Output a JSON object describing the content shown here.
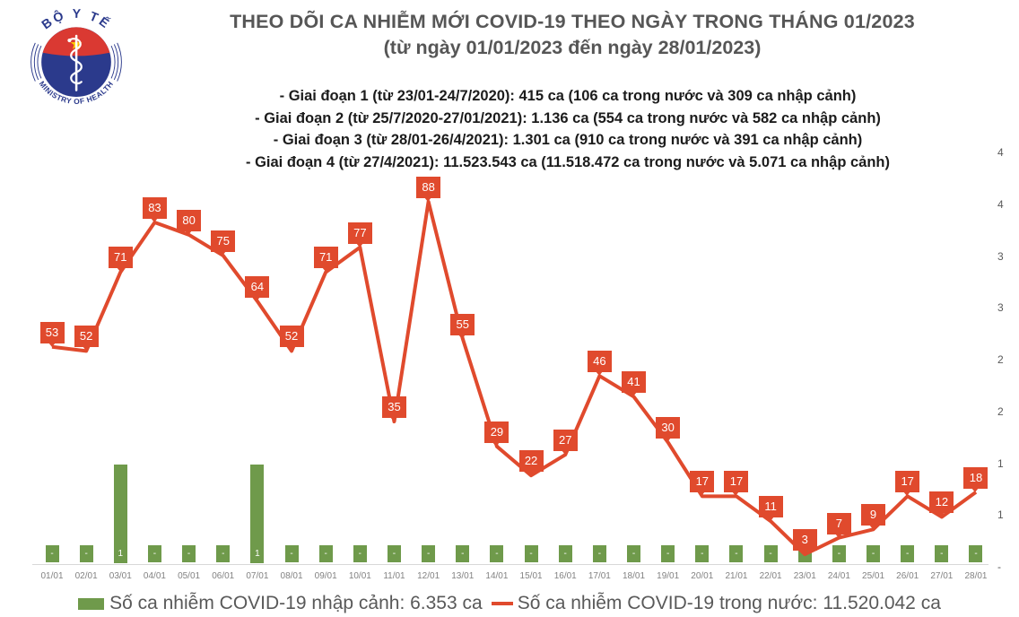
{
  "header": {
    "title_line1": "THEO DÕI CA NHIỄM MỚI COVID-19 THEO NGÀY TRONG THÁNG 01/2023",
    "title_line2": "(từ ngày 01/01/2023 đến ngày 28/01/2023)",
    "phases": [
      "- Giai đoạn 1 (từ 23/01-24/7/2020): 415 ca (106 ca trong nước và 309 ca nhập cảnh)",
      "- Giai đoạn 2 (từ 25/7/2020-27/01/2021): 1.136 ca (554 ca trong nước và 582 ca nhập cảnh)",
      "- Giai đoạn 3 (từ 28/01-26/4/2021): 1.301 ca (910 ca trong nước và 391 ca nhập cảnh)",
      "- Giai đoạn 4 (từ 27/4/2021): 11.523.543 ca (11.518.472 ca trong nước và 5.071 ca nhập cảnh)"
    ],
    "logo": {
      "top_text": "BỘ Y TẾ",
      "bottom_text": "MINISTRY OF HEALTH"
    }
  },
  "chart_data": {
    "type": "combo",
    "title": "THEO DÕI CA NHIỄM MỚI COVID-19 THEO NGÀY TRONG THÁNG 01/2023 (từ ngày 01/01/2023 đến ngày 28/01/2023)",
    "categories": [
      "01/01",
      "02/01",
      "03/01",
      "04/01",
      "05/01",
      "06/01",
      "07/01",
      "08/01",
      "09/01",
      "10/01",
      "11/01",
      "12/01",
      "13/01",
      "14/01",
      "15/01",
      "16/01",
      "17/01",
      "18/01",
      "19/01",
      "20/01",
      "21/01",
      "22/01",
      "23/01",
      "24/01",
      "25/01",
      "26/01",
      "27/01",
      "28/01"
    ],
    "series": [
      {
        "name": "Số ca nhiễm COVID-19 nhập cảnh",
        "type": "bar",
        "color": "#6F9A4B",
        "values": [
          0,
          0,
          1,
          0,
          0,
          0,
          1,
          0,
          0,
          0,
          0,
          0,
          0,
          0,
          0,
          0,
          0,
          0,
          0,
          0,
          0,
          0,
          0,
          0,
          0,
          0,
          0,
          0
        ],
        "data_labels": [
          "-",
          "-",
          "1",
          "-",
          "-",
          "-",
          "1",
          "-",
          "-",
          "-",
          "-",
          "-",
          "-",
          "-",
          "-",
          "-",
          "-",
          "-",
          "-",
          "-",
          "-",
          "-",
          "-",
          "-",
          "-",
          "-",
          "-",
          "-"
        ]
      },
      {
        "name": "Số ca nhiễm COVID-19 trong nước",
        "type": "line",
        "color": "#E04A2D",
        "values": [
          53,
          52,
          71,
          83,
          80,
          75,
          64,
          52,
          71,
          77,
          35,
          88,
          55,
          29,
          22,
          27,
          46,
          41,
          30,
          17,
          17,
          11,
          3,
          7,
          9,
          17,
          12,
          18
        ]
      }
    ],
    "right_axis_labels_visible": [
      "4",
      "4",
      "3",
      "3",
      "2",
      "2",
      "1",
      "1",
      "-"
    ],
    "gridlines": false,
    "legend_position": "bottom"
  },
  "legend": {
    "imported": "Số ca nhiễm COVID-19 nhập cảnh: 6.353 ca",
    "domestic": "Số ca nhiễm COVID-19 trong nước: 11.520.042 ca"
  },
  "colors": {
    "line_red": "#E04A2D",
    "bar_green": "#6F9A4B",
    "title_gray": "#565656",
    "legend_gray": "#595959",
    "axis_gray": "#828282",
    "logo_navy": "#2B3A8C",
    "logo_red": "#DA3932",
    "logo_star": "#FFD100"
  }
}
